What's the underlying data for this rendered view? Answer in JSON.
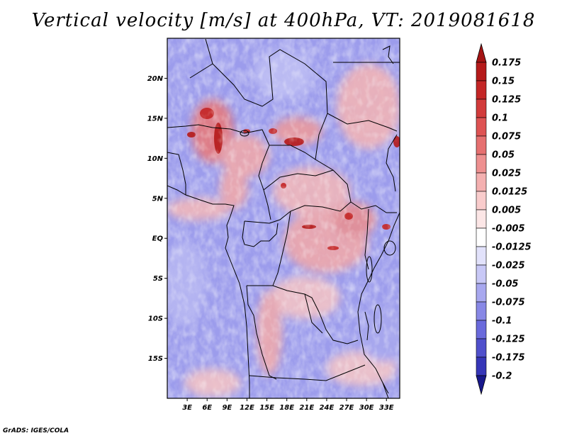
{
  "title": "Vertical velocity [m/s] at 400hPa, VT: 2019081618",
  "credit": "GrADS: IGES/COLA",
  "map": {
    "lon_range": [
      0,
      35
    ],
    "lat_range": [
      -20,
      25
    ],
    "lat_ticks": [
      {
        "value": 20,
        "label": "20N"
      },
      {
        "value": 15,
        "label": "15N"
      },
      {
        "value": 10,
        "label": "10N"
      },
      {
        "value": 5,
        "label": "5N"
      },
      {
        "value": 0,
        "label": "EQ"
      },
      {
        "value": -5,
        "label": "5S"
      },
      {
        "value": -10,
        "label": "10S"
      },
      {
        "value": -15,
        "label": "15S"
      }
    ],
    "lon_ticks": [
      {
        "value": 3,
        "label": "3E"
      },
      {
        "value": 6,
        "label": "6E"
      },
      {
        "value": 9,
        "label": "9E"
      },
      {
        "value": 12,
        "label": "12E"
      },
      {
        "value": 15,
        "label": "15E"
      },
      {
        "value": 18,
        "label": "18E"
      },
      {
        "value": 21,
        "label": "21E"
      },
      {
        "value": 24,
        "label": "24E"
      },
      {
        "value": 27,
        "label": "27E"
      },
      {
        "value": 30,
        "label": "30E"
      },
      {
        "value": 33,
        "label": "33E"
      }
    ]
  },
  "colorbar": {
    "levels": [
      {
        "label": "0.175",
        "color": "#b51a1a"
      },
      {
        "label": "0.15",
        "color": "#c42626"
      },
      {
        "label": "0.125",
        "color": "#d23b3b"
      },
      {
        "label": "0.1",
        "color": "#de5353"
      },
      {
        "label": "0.075",
        "color": "#e67070"
      },
      {
        "label": "0.05",
        "color": "#ee9090"
      },
      {
        "label": "0.025",
        "color": "#f4b0b0"
      },
      {
        "label": "0.0125",
        "color": "#f9cccc"
      },
      {
        "label": "0.005",
        "color": "#fce6e6"
      },
      {
        "label": "-0.005",
        "color": "#ffffff"
      },
      {
        "label": "-0.0125",
        "color": "#e2e2fb"
      },
      {
        "label": "-0.025",
        "color": "#c8c8f6"
      },
      {
        "label": "-0.05",
        "color": "#a8a8ef"
      },
      {
        "label": "-0.075",
        "color": "#8888e6"
      },
      {
        "label": "-0.1",
        "color": "#6a6adc"
      },
      {
        "label": "-0.125",
        "color": "#5050cc"
      },
      {
        "label": "-0.175",
        "color": "#3636b8"
      },
      {
        "label": "-0.2",
        "color": "#2222a0"
      }
    ],
    "top_color": "#a41414",
    "bottom_color": "#18188c"
  }
}
